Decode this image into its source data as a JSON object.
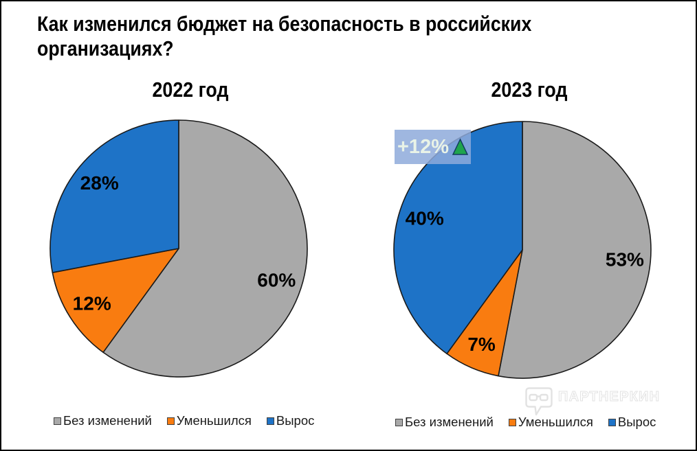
{
  "title": "Как изменился бюджет на безопасность в российских организациях?",
  "chart_data": [
    {
      "type": "pie",
      "title": "2022 год",
      "labels": [
        "Без изменений",
        "Уменьшился",
        "Вырос"
      ],
      "values": [
        60,
        12,
        28
      ],
      "data_labels": [
        "60%",
        "12%",
        "28%"
      ],
      "colors": [
        "#a9a9a9",
        "#f97c10",
        "#1e73c7"
      ],
      "start_angle_deg": 0,
      "direction": "clockwise",
      "legend_position": "bottom"
    },
    {
      "type": "pie",
      "title": "2023 год",
      "labels": [
        "Без изменений",
        "Уменьшился",
        "Вырос"
      ],
      "values": [
        53,
        7,
        40
      ],
      "data_labels": [
        "53%",
        "7%",
        "40%"
      ],
      "colors": [
        "#a9a9a9",
        "#f97c10",
        "#1e73c7"
      ],
      "start_angle_deg": 0,
      "direction": "clockwise",
      "legend_position": "bottom",
      "annotation": {
        "text": "+12%",
        "icon": "up-triangle",
        "icon_color": "#1fa44c",
        "background": "#9fb7e0"
      }
    }
  ],
  "watermark": {
    "text": "ПАРТНЕРКИН",
    "icon": "speech-bubble-glasses-logo"
  }
}
